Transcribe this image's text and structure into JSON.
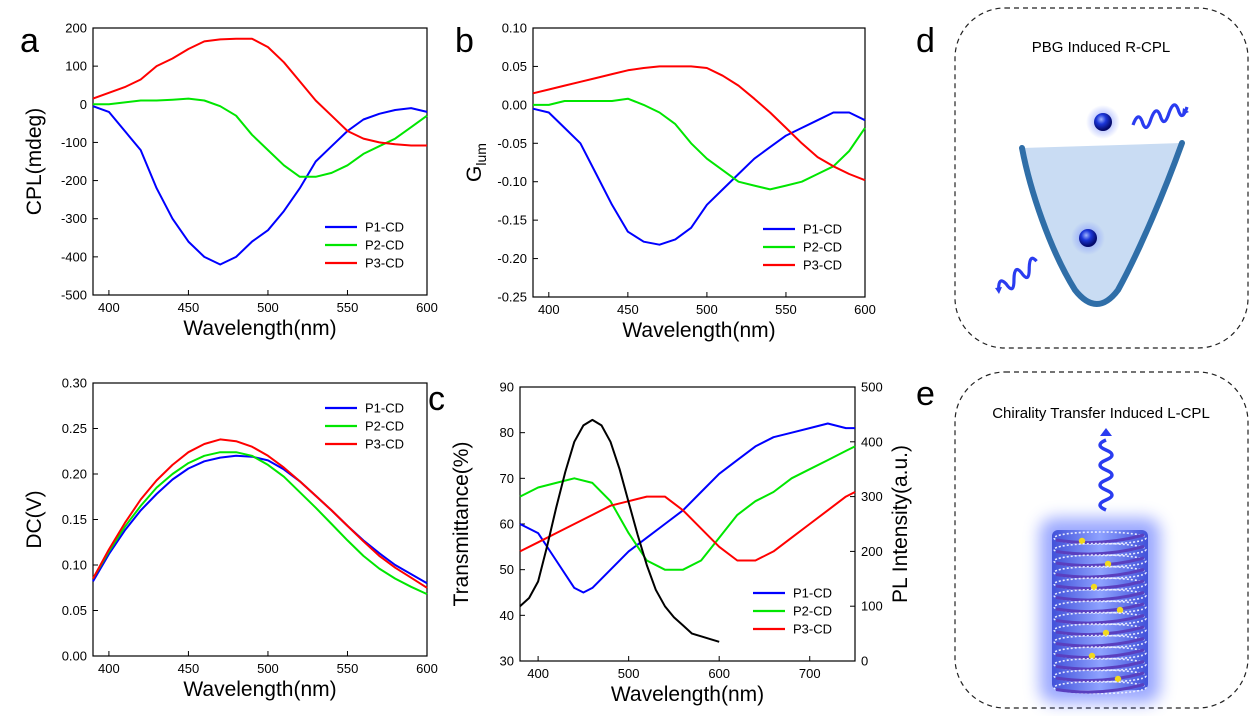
{
  "panel_labels": [
    "a",
    "b",
    "c",
    "d",
    "e"
  ],
  "schematics": {
    "d_title": "PBG Induced R-CPL",
    "e_title": "Chirality Transfer Induced L-CPL"
  },
  "colors": {
    "P1-CD": "#0000ff",
    "P2-CD": "#00e600",
    "P3-CD": "#ff0000",
    "PL": "#000000"
  },
  "chart_data": [
    {
      "id": "a",
      "type": "line",
      "xlabel": "Wavelength(nm)",
      "ylabel": "CPL(mdeg)",
      "xlim": [
        390,
        600
      ],
      "ylim": [
        -500,
        200
      ],
      "xticks": [
        400,
        450,
        500,
        550,
        600
      ],
      "yticks": [
        -500,
        -400,
        -300,
        -200,
        -100,
        0,
        100,
        200
      ],
      "legend": "bottom-right",
      "series": [
        {
          "name": "P1-CD",
          "color": "#0000ff",
          "x": [
            390,
            400,
            410,
            420,
            430,
            440,
            450,
            460,
            470,
            480,
            490,
            500,
            510,
            520,
            530,
            540,
            550,
            560,
            570,
            580,
            590,
            600
          ],
          "y": [
            -5,
            -20,
            -70,
            -120,
            -220,
            -300,
            -360,
            -400,
            -420,
            -400,
            -360,
            -330,
            -280,
            -220,
            -150,
            -110,
            -70,
            -40,
            -25,
            -15,
            -10,
            -20
          ]
        },
        {
          "name": "P2-CD",
          "color": "#00e600",
          "x": [
            390,
            400,
            410,
            420,
            430,
            440,
            450,
            460,
            470,
            480,
            490,
            500,
            510,
            520,
            530,
            540,
            550,
            560,
            570,
            580,
            590,
            600
          ],
          "y": [
            0,
            0,
            5,
            10,
            10,
            12,
            15,
            10,
            -5,
            -30,
            -80,
            -120,
            -160,
            -190,
            -190,
            -180,
            -160,
            -130,
            -110,
            -90,
            -60,
            -30
          ]
        },
        {
          "name": "P3-CD",
          "color": "#ff0000",
          "x": [
            390,
            400,
            410,
            420,
            430,
            440,
            450,
            460,
            470,
            480,
            490,
            500,
            510,
            520,
            530,
            540,
            550,
            560,
            570,
            580,
            590,
            600
          ],
          "y": [
            15,
            30,
            45,
            65,
            100,
            120,
            145,
            165,
            170,
            172,
            172,
            150,
            110,
            60,
            10,
            -30,
            -70,
            -90,
            -100,
            -105,
            -108,
            -108
          ]
        }
      ]
    },
    {
      "id": "b",
      "type": "line",
      "xlabel": "Wavelength(nm)",
      "ylabel": "G",
      "ylabel_sub": "lum",
      "xlim": [
        390,
        600
      ],
      "ylim": [
        -0.25,
        0.1
      ],
      "xticks": [
        400,
        450,
        500,
        550,
        600
      ],
      "yticks": [
        "-0.25",
        "-0.20",
        "-0.15",
        "-0.10",
        "-0.05",
        "0.00",
        "0.05",
        "0.10"
      ],
      "legend": "bottom-right",
      "series": [
        {
          "name": "P1-CD",
          "color": "#0000ff",
          "x": [
            390,
            400,
            410,
            420,
            430,
            440,
            450,
            460,
            470,
            480,
            490,
            500,
            510,
            520,
            530,
            540,
            550,
            560,
            570,
            580,
            590,
            600
          ],
          "y": [
            -0.005,
            -0.01,
            -0.03,
            -0.05,
            -0.09,
            -0.13,
            -0.165,
            -0.178,
            -0.182,
            -0.175,
            -0.16,
            -0.13,
            -0.11,
            -0.09,
            -0.07,
            -0.055,
            -0.04,
            -0.03,
            -0.02,
            -0.01,
            -0.01,
            -0.02
          ]
        },
        {
          "name": "P2-CD",
          "color": "#00e600",
          "x": [
            390,
            400,
            410,
            420,
            430,
            440,
            450,
            460,
            470,
            480,
            490,
            500,
            510,
            520,
            530,
            540,
            550,
            560,
            570,
            580,
            590,
            600
          ],
          "y": [
            0.0,
            0.0,
            0.005,
            0.005,
            0.005,
            0.005,
            0.008,
            0.0,
            -0.01,
            -0.025,
            -0.05,
            -0.07,
            -0.085,
            -0.1,
            -0.105,
            -0.11,
            -0.105,
            -0.1,
            -0.09,
            -0.08,
            -0.06,
            -0.03
          ]
        },
        {
          "name": "P3-CD",
          "color": "#ff0000",
          "x": [
            390,
            400,
            410,
            420,
            430,
            440,
            450,
            460,
            470,
            480,
            490,
            500,
            510,
            520,
            530,
            540,
            550,
            560,
            570,
            580,
            590,
            600
          ],
          "y": [
            0.015,
            0.02,
            0.025,
            0.03,
            0.035,
            0.04,
            0.045,
            0.048,
            0.05,
            0.05,
            0.05,
            0.048,
            0.038,
            0.025,
            0.008,
            -0.01,
            -0.03,
            -0.05,
            -0.068,
            -0.08,
            -0.09,
            -0.098
          ]
        }
      ]
    },
    {
      "id": "dc",
      "type": "line",
      "xlabel": "Wavelength(nm)",
      "ylabel": "DC(V)",
      "xlim": [
        390,
        600
      ],
      "ylim": [
        0.0,
        0.3
      ],
      "xticks": [
        400,
        450,
        500,
        550,
        600
      ],
      "yticks": [
        "0.00",
        "0.05",
        "0.10",
        "0.15",
        "0.20",
        "0.25",
        "0.30"
      ],
      "legend": "top-right",
      "series": [
        {
          "name": "P1-CD",
          "color": "#0000ff",
          "x": [
            390,
            400,
            410,
            420,
            430,
            440,
            450,
            460,
            470,
            480,
            490,
            500,
            510,
            520,
            530,
            540,
            550,
            560,
            570,
            580,
            590,
            600
          ],
          "y": [
            0.082,
            0.112,
            0.138,
            0.16,
            0.178,
            0.194,
            0.206,
            0.214,
            0.218,
            0.22,
            0.219,
            0.215,
            0.205,
            0.192,
            0.176,
            0.16,
            0.143,
            0.127,
            0.113,
            0.1,
            0.09,
            0.08
          ]
        },
        {
          "name": "P2-CD",
          "color": "#00e600",
          "x": [
            390,
            400,
            410,
            420,
            430,
            440,
            450,
            460,
            470,
            480,
            490,
            500,
            510,
            520,
            530,
            540,
            550,
            560,
            570,
            580,
            590,
            600
          ],
          "y": [
            0.085,
            0.115,
            0.142,
            0.165,
            0.185,
            0.2,
            0.212,
            0.22,
            0.224,
            0.224,
            0.22,
            0.21,
            0.197,
            0.18,
            0.163,
            0.145,
            0.127,
            0.11,
            0.096,
            0.085,
            0.076,
            0.068
          ]
        },
        {
          "name": "P3-CD",
          "color": "#ff0000",
          "x": [
            390,
            400,
            410,
            420,
            430,
            440,
            450,
            460,
            470,
            480,
            490,
            500,
            510,
            520,
            530,
            540,
            550,
            560,
            570,
            580,
            590,
            600
          ],
          "y": [
            0.085,
            0.117,
            0.146,
            0.172,
            0.193,
            0.21,
            0.224,
            0.233,
            0.238,
            0.236,
            0.23,
            0.22,
            0.207,
            0.192,
            0.176,
            0.16,
            0.143,
            0.126,
            0.11,
            0.097,
            0.086,
            0.075
          ]
        }
      ]
    },
    {
      "id": "c",
      "type": "line",
      "xlabel": "Wavelength(nm)",
      "ylabel": "Transmittance(%)",
      "y2label": "PL Intensity(a.u.)",
      "xlim": [
        380,
        750
      ],
      "ylim": [
        30,
        90
      ],
      "y2lim": [
        0,
        500
      ],
      "xticks": [
        400,
        500,
        600,
        700
      ],
      "yticks": [
        30,
        40,
        50,
        60,
        70,
        80,
        90
      ],
      "y2ticks": [
        0,
        100,
        200,
        300,
        400,
        500
      ],
      "legend": "bottom-right",
      "series": [
        {
          "name": "P1-CD",
          "color": "#0000ff",
          "axis": "left",
          "x": [
            380,
            400,
            420,
            440,
            450,
            460,
            480,
            500,
            520,
            540,
            560,
            580,
            600,
            620,
            640,
            660,
            680,
            700,
            720,
            740,
            750
          ],
          "y": [
            60,
            58,
            52,
            46,
            45,
            46,
            50,
            54,
            57,
            60,
            63,
            67,
            71,
            74,
            77,
            79,
            80,
            81,
            82,
            81,
            81
          ]
        },
        {
          "name": "P2-CD",
          "color": "#00e600",
          "axis": "left",
          "x": [
            380,
            400,
            420,
            440,
            460,
            480,
            500,
            520,
            540,
            560,
            580,
            600,
            620,
            640,
            660,
            680,
            700,
            720,
            740,
            750
          ],
          "y": [
            66,
            68,
            69,
            70,
            69,
            65,
            58,
            52,
            50,
            50,
            52,
            57,
            62,
            65,
            67,
            70,
            72,
            74,
            76,
            77
          ]
        },
        {
          "name": "P3-CD",
          "color": "#ff0000",
          "axis": "left",
          "x": [
            380,
            400,
            420,
            440,
            460,
            480,
            500,
            520,
            540,
            560,
            580,
            600,
            620,
            640,
            660,
            680,
            700,
            720,
            740,
            750
          ],
          "y": [
            54,
            56,
            58,
            60,
            62,
            64,
            65,
            66,
            66,
            63,
            59,
            55,
            52,
            52,
            54,
            57,
            60,
            63,
            66,
            67
          ]
        },
        {
          "name": "PL",
          "color": "#000000",
          "axis": "right",
          "in_legend": false,
          "x": [
            380,
            390,
            400,
            410,
            420,
            430,
            440,
            450,
            460,
            470,
            480,
            490,
            500,
            510,
            520,
            530,
            540,
            550,
            560,
            570,
            580,
            590,
            600
          ],
          "y": [
            100,
            115,
            145,
            210,
            280,
            345,
            400,
            430,
            440,
            430,
            400,
            350,
            290,
            230,
            175,
            130,
            100,
            80,
            65,
            50,
            45,
            40,
            35
          ]
        }
      ]
    }
  ]
}
